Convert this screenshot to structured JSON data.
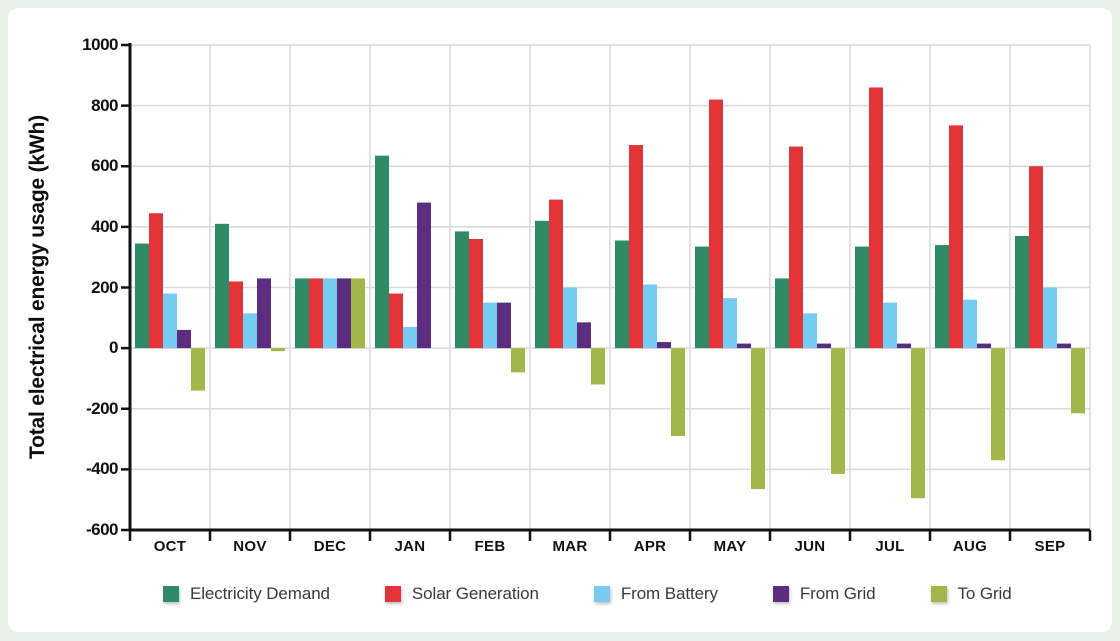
{
  "colors": {
    "page_background": "#e9f0ec",
    "card_background": "#ffffff",
    "gridline": "#d7dad8",
    "axis": "#111111",
    "tick_label": "#111111",
    "legend_text": "#3a3a3a"
  },
  "chart_data": {
    "type": "bar",
    "title": "",
    "xlabel": "",
    "ylabel": "Total electrical energy usage (kWh)",
    "ylim": [
      -600,
      1000
    ],
    "yticks": [
      1000,
      800,
      600,
      400,
      200,
      0,
      -200,
      -400,
      -600
    ],
    "grid": true,
    "legend_position": "bottom",
    "categories": [
      "OCT",
      "NOV",
      "DEC",
      "JAN",
      "FEB",
      "MAR",
      "APR",
      "MAY",
      "JUN",
      "JUL",
      "AUG",
      "SEP"
    ],
    "series": [
      {
        "name": "Electricity Demand",
        "color": "#2e8b66",
        "values": [
          345,
          410,
          230,
          635,
          385,
          420,
          355,
          335,
          230,
          335,
          340,
          370
        ]
      },
      {
        "name": "Solar Generation",
        "color": "#e33539",
        "values": [
          445,
          220,
          230,
          180,
          360,
          490,
          670,
          820,
          665,
          860,
          735,
          600
        ]
      },
      {
        "name": "From Battery",
        "color": "#76cbf0",
        "values": [
          180,
          115,
          230,
          70,
          150,
          200,
          210,
          165,
          115,
          150,
          160,
          200
        ]
      },
      {
        "name": "From Grid",
        "color": "#5a2d80",
        "values": [
          60,
          230,
          230,
          480,
          150,
          85,
          20,
          15,
          15,
          15,
          15,
          15
        ]
      },
      {
        "name": "To Grid",
        "color": "#a1b74a",
        "values": [
          -140,
          -10,
          230,
          0,
          -80,
          -120,
          -290,
          -465,
          -415,
          -495,
          -370,
          -215
        ]
      }
    ]
  }
}
